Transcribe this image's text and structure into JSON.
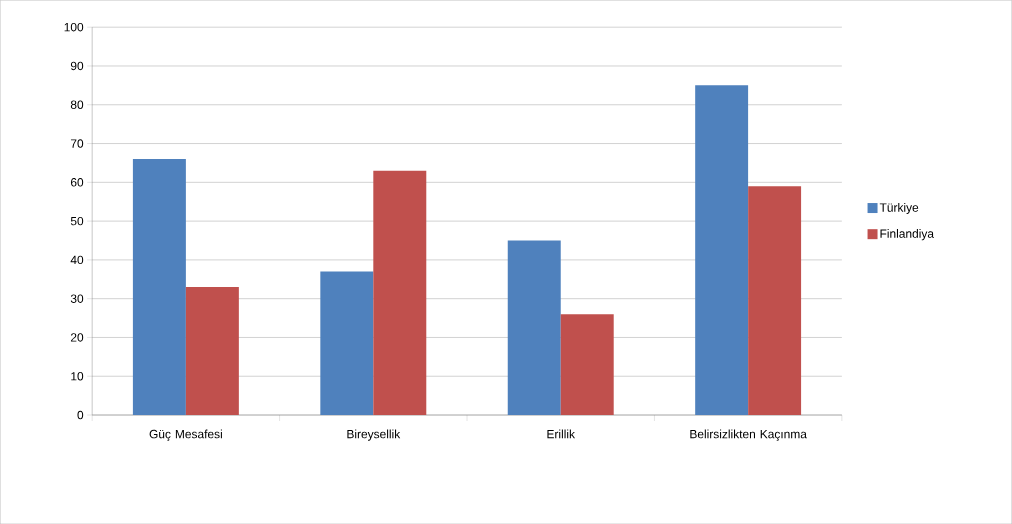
{
  "chart_data": {
    "type": "bar",
    "categories": [
      "Güç Mesafesi",
      "Bireysellik",
      "Erillik",
      "Belirsizlikten Kaçınma"
    ],
    "series": [
      {
        "name": "Türkiye",
        "color": "#4f81bd",
        "values": [
          66,
          37,
          45,
          85
        ]
      },
      {
        "name": "Finlandiya",
        "color": "#c0504d",
        "values": [
          33,
          63,
          26,
          59
        ]
      }
    ],
    "ylim": [
      0,
      100
    ],
    "yticks": [
      0,
      10,
      20,
      30,
      40,
      50,
      60,
      70,
      80,
      90,
      100
    ],
    "grid": "y",
    "legend": "right"
  }
}
